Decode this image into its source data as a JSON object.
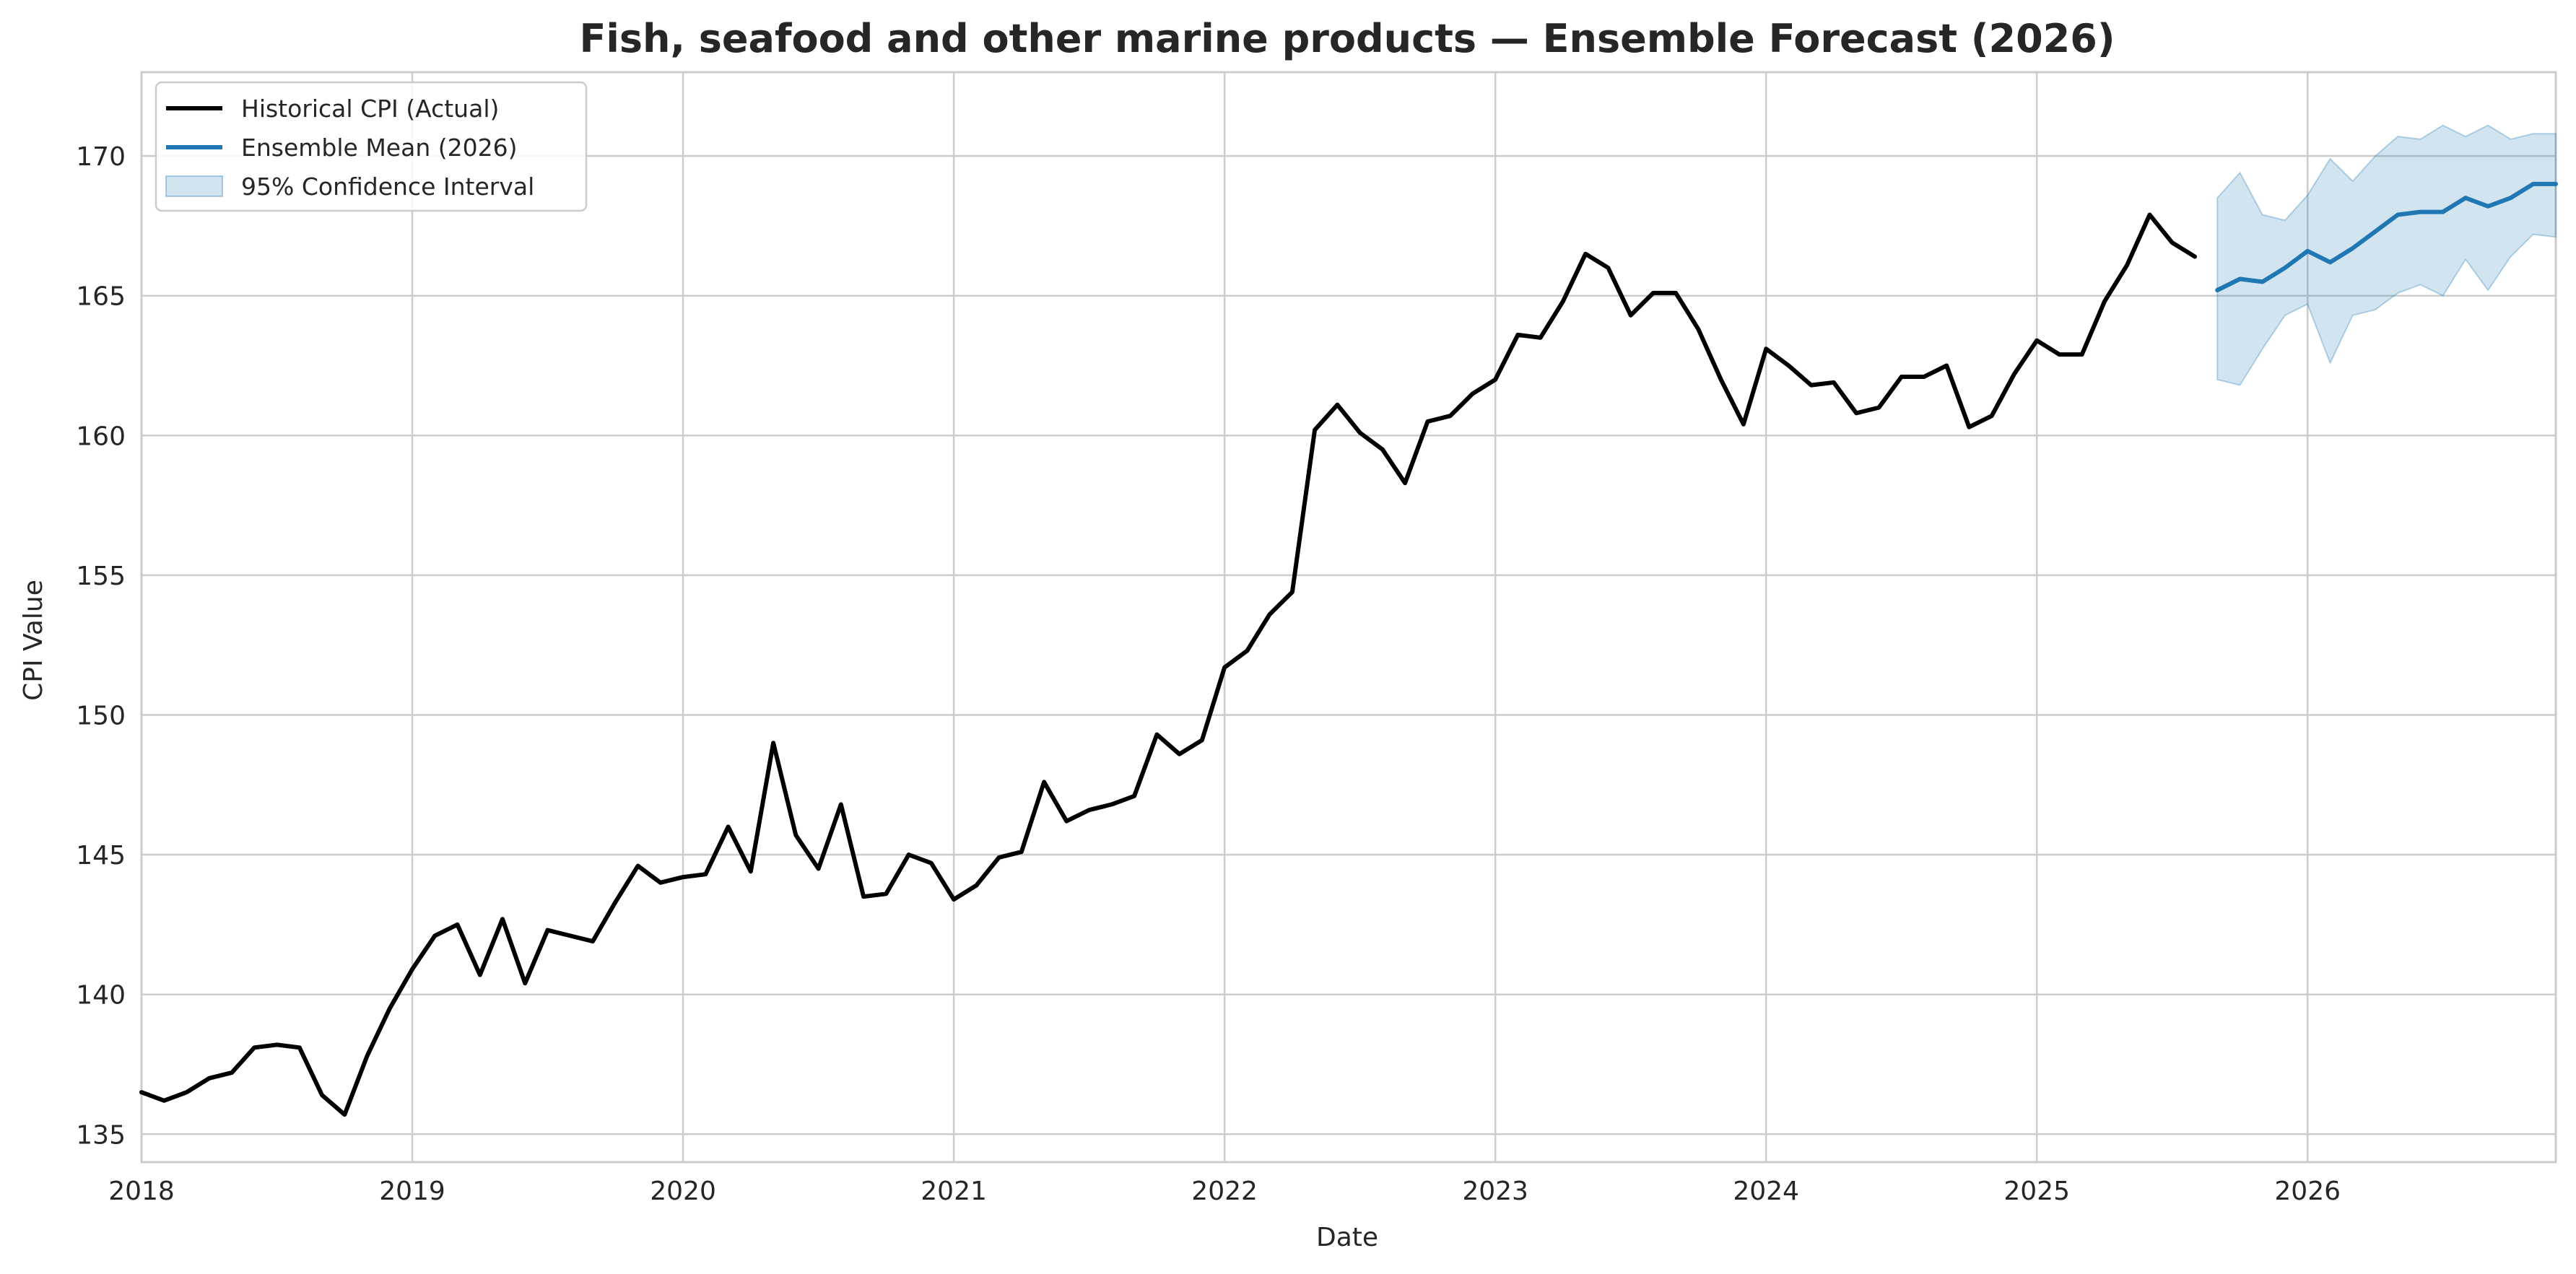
{
  "chart_data": {
    "type": "line",
    "title": "Fish, seafood and other marine products — Ensemble Forecast (2026)",
    "xlabel": "Date",
    "ylabel": "CPI Value",
    "xlim": [
      "2018-01",
      "2026-12"
    ],
    "ylim": [
      134,
      173
    ],
    "x_ticks": [
      "2018",
      "2019",
      "2020",
      "2021",
      "2022",
      "2023",
      "2024",
      "2025",
      "2026"
    ],
    "y_ticks": [
      135,
      140,
      145,
      150,
      155,
      160,
      165,
      170
    ],
    "grid": true,
    "legend_position": "top-left",
    "colors": {
      "historical": "#000000",
      "mean": "#1f77b4",
      "ci_fill": "#1f77b4"
    },
    "legend": [
      {
        "label": "Historical CPI (Actual)",
        "kind": "line",
        "color": "#000000"
      },
      {
        "label": "Ensemble Mean (2026)",
        "kind": "line",
        "color": "#1f77b4"
      },
      {
        "label": "95% Confidence Interval",
        "kind": "patch",
        "color": "#1f77b4"
      }
    ],
    "series": [
      {
        "name": "Historical CPI (Actual)",
        "start": "2018-01",
        "values": [
          136.5,
          136.2,
          136.5,
          137.0,
          137.2,
          138.1,
          138.2,
          138.1,
          136.4,
          135.7,
          137.8,
          139.5,
          140.9,
          142.1,
          142.5,
          140.7,
          142.7,
          140.4,
          142.3,
          142.1,
          141.9,
          143.3,
          144.6,
          144.0,
          144.2,
          144.3,
          146.0,
          144.4,
          149.0,
          145.7,
          144.5,
          146.8,
          143.5,
          143.6,
          145.0,
          144.7,
          143.4,
          143.9,
          144.9,
          145.1,
          147.6,
          146.2,
          146.6,
          146.8,
          147.1,
          149.3,
          148.6,
          149.1,
          151.7,
          152.3,
          153.6,
          154.4,
          160.2,
          161.1,
          160.1,
          159.5,
          158.3,
          160.5,
          160.7,
          161.5,
          162.0,
          163.6,
          163.5,
          164.8,
          166.5,
          166.0,
          164.3,
          165.1,
          165.1,
          163.8,
          162.0,
          160.4,
          163.1,
          162.5,
          161.8,
          161.9,
          160.8,
          161.0,
          162.1,
          162.1,
          162.5,
          160.3,
          160.7,
          162.2,
          163.4,
          162.9,
          162.9,
          164.8,
          166.1,
          167.9,
          166.9,
          166.4
        ]
      },
      {
        "name": "Ensemble Mean (2026)",
        "start": "2025-09",
        "values": [
          165.2,
          165.6,
          165.5,
          166.0,
          166.6,
          166.2,
          166.7,
          167.3,
          167.9,
          168.0,
          168.0,
          168.5,
          168.2,
          168.5,
          169.0,
          169.0
        ],
        "ci_lower": [
          162.0,
          161.8,
          163.1,
          164.3,
          164.7,
          162.6,
          164.3,
          164.5,
          165.1,
          165.4,
          165.0,
          166.3,
          165.2,
          166.4,
          167.2,
          167.1
        ],
        "ci_upper": [
          168.5,
          169.4,
          167.9,
          167.7,
          168.6,
          169.9,
          169.1,
          170.0,
          170.7,
          170.6,
          171.1,
          170.7,
          171.1,
          170.6,
          170.8,
          170.8
        ]
      }
    ]
  }
}
